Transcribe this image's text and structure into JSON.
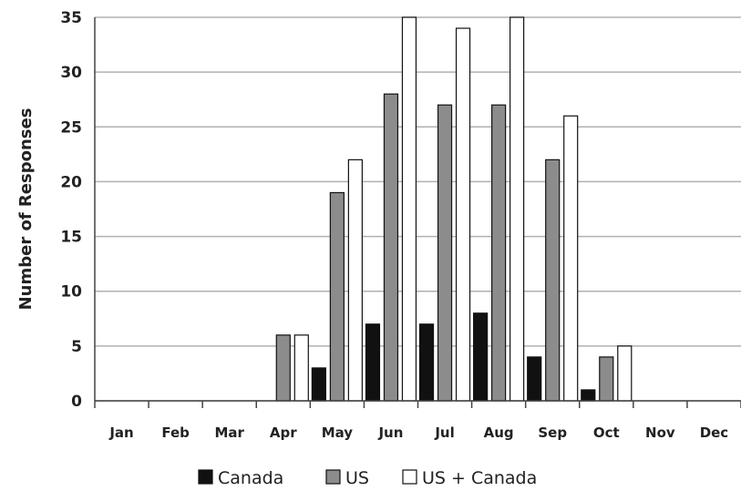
{
  "chart_data": {
    "type": "bar",
    "title": "",
    "xlabel": "",
    "ylabel": "Number of Responses",
    "ylim": [
      0,
      35
    ],
    "yticks": [
      0,
      5,
      10,
      15,
      20,
      25,
      30,
      35
    ],
    "grid": true,
    "legend_position": "bottom",
    "categories": [
      "Jan",
      "Feb",
      "Mar",
      "Apr",
      "May",
      "Jun",
      "Jul",
      "Aug",
      "Sep",
      "Oct",
      "Nov",
      "Dec"
    ],
    "series": [
      {
        "name": "Canada",
        "color": "#111111",
        "values": [
          0,
          0,
          0,
          0,
          3,
          7,
          7,
          8,
          4,
          1,
          0,
          0
        ]
      },
      {
        "name": "US",
        "color": "#8c8c8c",
        "values": [
          0,
          0,
          0,
          6,
          19,
          28,
          27,
          27,
          22,
          4,
          0,
          0
        ]
      },
      {
        "name": "US + Canada",
        "color": "#ffffff",
        "values": [
          0,
          0,
          0,
          6,
          22,
          35,
          34,
          35,
          26,
          5,
          0,
          0
        ]
      }
    ]
  }
}
